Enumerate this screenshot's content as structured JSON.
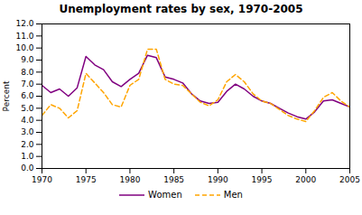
{
  "chart_data": {
    "type": "line",
    "title": "Unemployment rates by sex, 1970-2005",
    "ylabel": "Percent",
    "x": [
      1970,
      1971,
      1972,
      1973,
      1974,
      1975,
      1976,
      1977,
      1978,
      1979,
      1980,
      1981,
      1982,
      1983,
      1984,
      1985,
      1986,
      1987,
      1988,
      1989,
      1990,
      1991,
      1992,
      1993,
      1994,
      1995,
      1996,
      1997,
      1998,
      1999,
      2000,
      2001,
      2002,
      2003,
      2004,
      2005
    ],
    "series": [
      {
        "name": "Women",
        "color": "#800080",
        "line_style": "solid",
        "values": [
          6.9,
          6.3,
          6.6,
          6.0,
          6.7,
          9.3,
          8.6,
          8.2,
          7.2,
          6.8,
          7.4,
          7.9,
          9.4,
          9.2,
          7.6,
          7.4,
          7.1,
          6.2,
          5.6,
          5.4,
          5.5,
          6.4,
          7.0,
          6.6,
          6.0,
          5.6,
          5.4,
          5.0,
          4.6,
          4.3,
          4.1,
          4.7,
          5.6,
          5.7,
          5.4,
          5.1
        ]
      },
      {
        "name": "Men",
        "color": "#FFA500",
        "line_style": "dashed",
        "values": [
          4.4,
          5.3,
          5.0,
          4.2,
          4.8,
          7.9,
          7.1,
          6.3,
          5.3,
          5.1,
          6.9,
          7.4,
          9.9,
          9.9,
          7.4,
          7.0,
          6.9,
          6.2,
          5.5,
          5.2,
          5.7,
          7.2,
          7.8,
          7.2,
          6.2,
          5.6,
          5.4,
          4.9,
          4.4,
          4.1,
          3.9,
          4.8,
          5.9,
          6.3,
          5.6,
          5.1
        ]
      }
    ],
    "xlim": [
      1970,
      2005
    ],
    "xticks": [
      1970,
      1975,
      1980,
      1985,
      1990,
      1995,
      2000,
      2005
    ],
    "ylim": [
      0,
      12
    ],
    "yticks": [
      {
        "value": 0,
        "label": "0.0"
      },
      {
        "value": 1,
        "label": "1.0"
      },
      {
        "value": 2,
        "label": "2.0"
      },
      {
        "value": 3,
        "label": "3.0"
      },
      {
        "value": 4,
        "label": "4.0"
      },
      {
        "value": 5,
        "label": "5.0"
      },
      {
        "value": 6,
        "label": "6.0"
      },
      {
        "value": 7,
        "label": "7.0"
      },
      {
        "value": 8,
        "label": "8.0"
      },
      {
        "value": 9,
        "label": "9.0"
      },
      {
        "value": 10,
        "label": "10.0"
      },
      {
        "value": 11,
        "label": "11.0"
      },
      {
        "value": 12,
        "label": "12.0"
      }
    ],
    "grid": false,
    "legend": "bottom"
  }
}
